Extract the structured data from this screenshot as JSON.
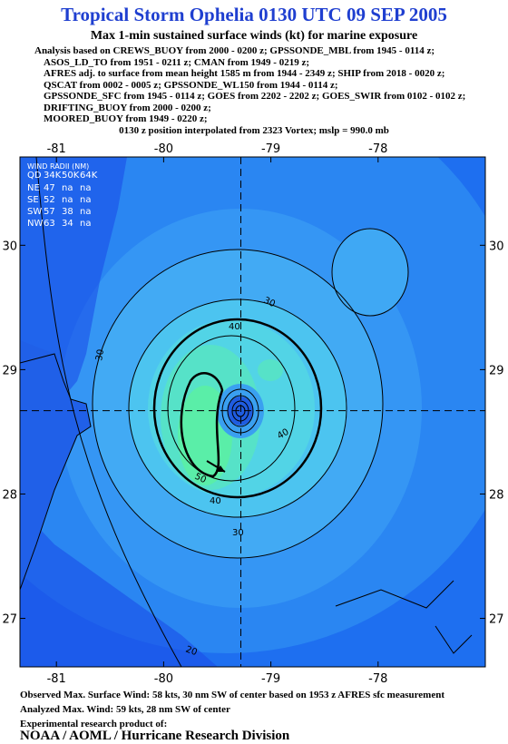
{
  "header": {
    "title": "Tropical Storm Ophelia 0130 UTC 09 SEP 2005",
    "subtitle": "Max 1-min sustained surface winds (kt) for marine exposure",
    "analysis_lines": [
      "Analysis based on  CREWS_BUOY from 2000 - 0200 z;  GPSSONDE_MBL from 1945 - 0114 z;",
      "ASOS_LD_TO from 1951 - 0211 z;  CMAN from 1949 - 0219 z;",
      "AFRES adj. to surface from mean height 1585 m from 1944 - 2349 z;  SHIP from 2018 - 0020 z;",
      "QSCAT from 0002 - 0005 z;  GPSSONDE_WL150 from 1944 - 0114 z;",
      "GPSSONDE_SFC from 1945 - 0114 z;  GOES from 2202 - 2202 z;  GOES_SWIR from 0102 - 0102 z;",
      "DRIFTING_BUOY from 2000 - 0200 z;",
      "MOORED_BUOY from 1949 - 0220 z;"
    ],
    "position_line": "0130 z position interpolated from 2323 Vortex; mslp = 990.0 mb"
  },
  "map": {
    "xlim": [
      -81.34,
      -77.0
    ],
    "ylim": [
      26.61,
      30.71
    ],
    "xticks": [
      -81,
      -80,
      -79,
      -78
    ],
    "yticks": [
      27,
      28,
      29,
      30
    ],
    "center": {
      "lon": -79.28,
      "lat": 28.67
    },
    "contour_labels": [
      30,
      40,
      30,
      40,
      50,
      40,
      30,
      20
    ]
  },
  "wind_radii": {
    "title": "WIND RADII (NM)",
    "columns": [
      "QD",
      "34K",
      "50K",
      "64K"
    ],
    "rows": [
      [
        "NE",
        47,
        "na",
        "na"
      ],
      [
        "SE",
        52,
        "na",
        "na"
      ],
      [
        "SW",
        57,
        38,
        "na"
      ],
      [
        "NW",
        63,
        34,
        "na"
      ]
    ]
  },
  "footer": {
    "lines": [
      "Observed Max. Surface Wind: 58 kts, 30 nm SW of center based on 1953 z AFRES sfc measurement",
      "Analyzed Max. Wind: 59 kts, 28 nm SW of center",
      "Experimental research product of:"
    ],
    "org": "NOAA / AOML / Hurricane Research Division"
  }
}
